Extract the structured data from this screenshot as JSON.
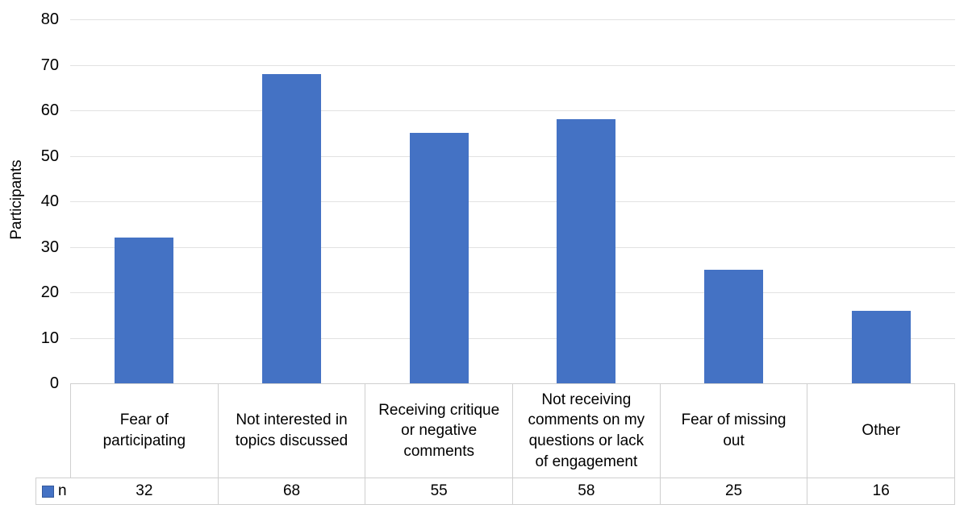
{
  "chart_data": {
    "type": "bar",
    "title": "",
    "xlabel": "",
    "ylabel": "Participants",
    "ylim": [
      0,
      80
    ],
    "yticks": [
      0,
      10,
      20,
      30,
      40,
      50,
      60,
      70,
      80
    ],
    "grid": true,
    "legend_position": "table-left",
    "categories": [
      "Fear of participating",
      "Not interested in topics discussed",
      "Receiving critique or negative comments",
      "Not receiving comments on my questions or lack of engagement",
      "Fear of missing out",
      "Other"
    ],
    "series": [
      {
        "name": "n",
        "values": [
          32,
          68,
          55,
          58,
          25,
          16
        ]
      }
    ],
    "colors": {
      "bar": "#4472C4",
      "swatch_border": "#35599B",
      "gridline": "#E2E2E2",
      "table_border": "#CFCFCF",
      "text": "#000000"
    }
  }
}
